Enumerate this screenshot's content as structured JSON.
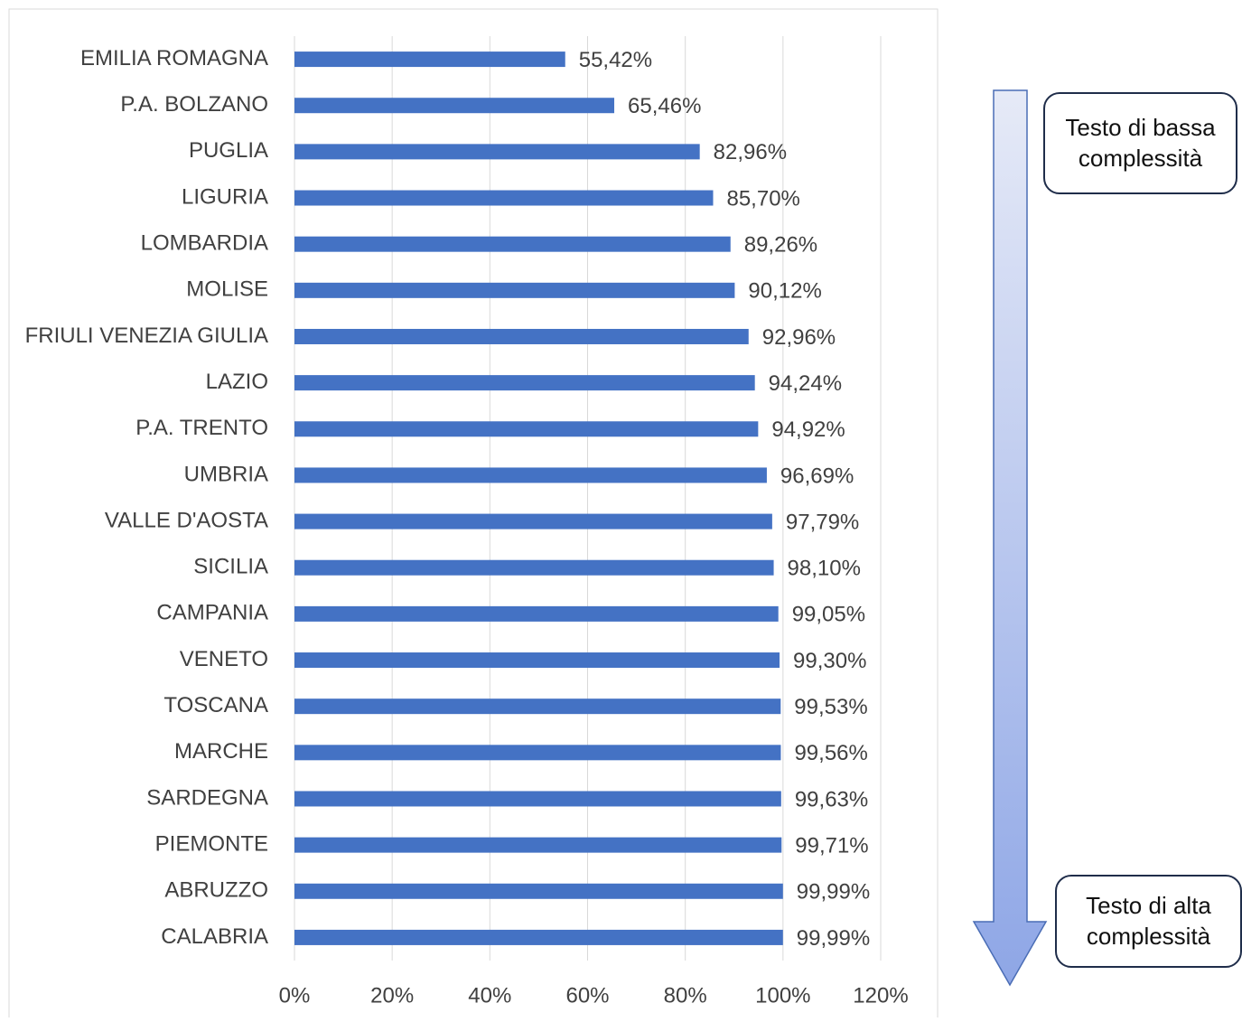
{
  "chart_data": {
    "type": "bar",
    "orientation": "horizontal",
    "categories": [
      "EMILIA ROMAGNA",
      "P.A. BOLZANO",
      "PUGLIA",
      "LIGURIA",
      "LOMBARDIA",
      "MOLISE",
      "FRIULI VENEZIA GIULIA",
      "LAZIO",
      "P.A. TRENTO",
      "UMBRIA",
      "VALLE D'AOSTA",
      "SICILIA",
      "CAMPANIA",
      "VENETO",
      "TOSCANA",
      "MARCHE",
      "SARDEGNA",
      "PIEMONTE",
      "ABRUZZO",
      "CALABRIA"
    ],
    "values": [
      55.42,
      65.46,
      82.96,
      85.7,
      89.26,
      90.12,
      92.96,
      94.24,
      94.92,
      96.69,
      97.79,
      98.1,
      99.05,
      99.3,
      99.53,
      99.56,
      99.63,
      99.71,
      99.99,
      99.99
    ],
    "value_labels": [
      "55,42%",
      "65,46%",
      "82,96%",
      "85,70%",
      "89,26%",
      "90,12%",
      "92,96%",
      "94,24%",
      "94,92%",
      "96,69%",
      "97,79%",
      "98,10%",
      "99,05%",
      "99,30%",
      "99,53%",
      "99,56%",
      "99,63%",
      "99,71%",
      "99,99%",
      "99,99%"
    ],
    "color": "#4472c4",
    "xlim": [
      0,
      120
    ],
    "xticks": [
      {
        "value": 0,
        "label": "0%"
      },
      {
        "value": 20,
        "label": "20%"
      },
      {
        "value": 40,
        "label": "40%"
      },
      {
        "value": 60,
        "label": "60%"
      },
      {
        "value": 80,
        "label": "80%"
      },
      {
        "value": 100,
        "label": "100%"
      },
      {
        "value": 120,
        "label": "120%"
      }
    ],
    "grid": true,
    "annotations": [
      "Testo di bassa complessità",
      "Testo di alta complessità"
    ]
  }
}
